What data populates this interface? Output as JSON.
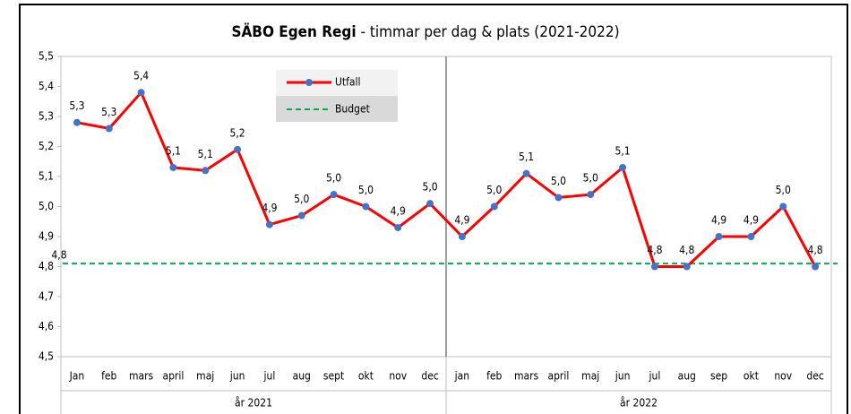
{
  "chart_data": {
    "type": "line",
    "title": "SÄBO  Egen Regi",
    "subtitle": "- timmar per dag & plats (2021-2022)",
    "categories": [
      "Jan",
      "feb",
      "mars",
      "april",
      "maj",
      "jun",
      "jul",
      "aug",
      "sept",
      "okt",
      "nov",
      "dec",
      "jan",
      "feb",
      "mars",
      "april",
      "maj",
      "jun",
      "jul",
      "aug",
      "sep",
      "okt",
      "nov",
      "dec"
    ],
    "groups": [
      "år 2021",
      "år 2022"
    ],
    "series": [
      {
        "name": "Utfall",
        "color": "#ff0000",
        "marker_color": "#4472c4",
        "values": [
          5.28,
          5.26,
          5.38,
          5.13,
          5.12,
          5.19,
          4.94,
          4.97,
          5.04,
          5.0,
          4.93,
          5.01,
          4.9,
          5.0,
          5.11,
          5.03,
          5.04,
          5.13,
          4.8,
          4.8,
          4.9,
          4.9,
          5.0,
          4.8
        ],
        "value_labels": [
          "5,3",
          "5,3",
          "5,4",
          "5,1",
          "5,1",
          "5,2",
          "4,9",
          "5,0",
          "5,0",
          "5,0",
          "4,9",
          "5,0",
          "4,9",
          "5,0",
          "5,1",
          "5,0",
          "5,0",
          "5,1",
          "4,8",
          "4,8",
          "4,9",
          "4,9",
          "5,0",
          "4,8"
        ]
      }
    ],
    "reference_line": {
      "name": "Budget",
      "value": 4.81,
      "value_label": "4,8",
      "color": "#00b050"
    },
    "ylim": [
      4.5,
      5.5
    ],
    "yticks": [
      {
        "value": 4.5,
        "label": "4,5"
      },
      {
        "value": 4.6,
        "label": "4,6"
      },
      {
        "value": 4.7,
        "label": "4,7"
      },
      {
        "value": 4.8,
        "label": "4,8"
      },
      {
        "value": 4.9,
        "label": "4,9"
      },
      {
        "value": 5.0,
        "label": "5,0"
      },
      {
        "value": 5.1,
        "label": "5,1"
      },
      {
        "value": 5.2,
        "label": "5,2"
      },
      {
        "value": 5.3,
        "label": "5,3"
      },
      {
        "value": 5.4,
        "label": "5,4"
      },
      {
        "value": 5.5,
        "label": "5,5"
      }
    ],
    "grid": false
  }
}
